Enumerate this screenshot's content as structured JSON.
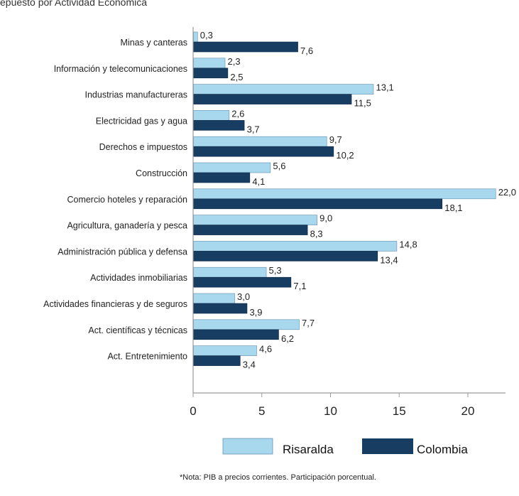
{
  "header_fragment": "epuesto por Actividad Económica",
  "chart_data": {
    "type": "bar",
    "orientation": "horizontal",
    "categories": [
      "Minas y canteras",
      "Información y telecomunicaciones",
      "Industrias manufactureras",
      "Electricidad gas y agua",
      "Derechos e impuestos",
      "Construcción",
      "Comercio hoteles y reparación",
      "Agricultura, ganadería y pesca",
      "Administración pública y defensa",
      "Actividades inmobiliarias",
      "Actividades financieras y de seguros",
      "Act. científicas y técnicas",
      "Act. Entretenimiento"
    ],
    "series": [
      {
        "name": "Risaralda",
        "color": "#a8d8ee",
        "values": [
          0.3,
          2.3,
          13.1,
          2.6,
          9.7,
          5.6,
          22.0,
          9.0,
          14.8,
          5.3,
          3.0,
          7.7,
          4.6
        ],
        "labels": [
          "0,3",
          "2,3",
          "13,1",
          "2,6",
          "9,7",
          "5,6",
          "22,0",
          "9,0",
          "14,8",
          "5,3",
          "3,0",
          "7,7",
          "4,6"
        ]
      },
      {
        "name": "Colombia",
        "color": "#173d63",
        "values": [
          7.6,
          2.5,
          11.5,
          3.7,
          10.2,
          4.1,
          18.1,
          8.3,
          13.4,
          7.1,
          3.9,
          6.2,
          3.4
        ],
        "labels": [
          "7,6",
          "2,5",
          "11,5",
          "3,7",
          "10,2",
          "4,1",
          "18,1",
          "8,3",
          "13,4",
          "7,1",
          "3,9",
          "6,2",
          "3,4"
        ]
      }
    ],
    "xlim": [
      0,
      23
    ],
    "xticks": [
      "0",
      "5",
      "10",
      "15",
      "20"
    ],
    "xtick_values": [
      0,
      5,
      10,
      15,
      20
    ],
    "legend_position": "bottom",
    "grid": false,
    "note": "*Nota: PIB a precios corrientes. Participación porcentual."
  }
}
